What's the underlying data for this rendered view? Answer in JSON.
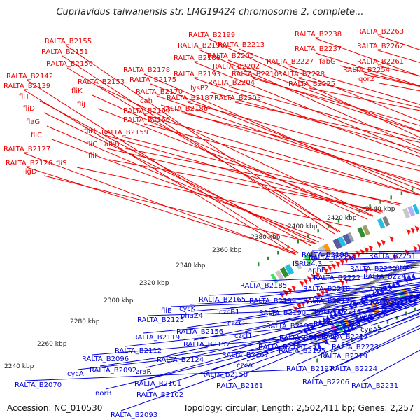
{
  "title": "Cupriavidus taiwanensis str. LMG19424 chromosome 2, complete...",
  "accession": "Accession: NC_010530",
  "topology": "Topology: circular; Length: 2,502,411 bp; Genes: 2,257",
  "colors": {
    "top_labels": "#ee0000",
    "bottom_labels": "#0000dd",
    "backbone": "#808080",
    "forward_arrow": "#ff1010",
    "reverse_arrow": "#1a1aff",
    "tick_marks": "#2a8a2a"
  },
  "kbp_labels": [
    "2240 kbp",
    "2260 kbp",
    "2280 kbp",
    "2300 kbp",
    "2320 kbp",
    "2340 kbp",
    "2360 kbp",
    "2380 kbp",
    "2400 kbp",
    "2420 kbp",
    "2440 kbp"
  ],
  "top_labels": [
    "RALTA_B2155",
    "RALTA_B2151",
    "RALTA_B2150",
    "RALTA_B2142",
    "RALTA_B2139",
    "fliT",
    "RALTA_B2153",
    "fliK",
    "fliJ",
    "fliD",
    "flaG",
    "fliH",
    "fliC",
    "fliG",
    "alkB",
    "RALTA_B2127",
    "fliF",
    "RALTA_B2126",
    "fliS",
    "ligD",
    "RALTA_B2178",
    "RALTA_B2175",
    "RALTA_B2170",
    "cah",
    "RALTA_B2164",
    "RALTA_B2160",
    "RALTA_B2159",
    "RALTA_B2199",
    "RALTA_B2196",
    "RALTA_B2213",
    "RALTA_B2188",
    "RALTA_B2205",
    "RALTA_B2202",
    "RALTA_B2193",
    "RALTA_B2210",
    "lysP2",
    "RALTA_B2204",
    "RALTA_B2187",
    "RALTA_B2203",
    "RALTA_B2186",
    "RALTA_B2238",
    "RALTA_B2237",
    "RALTA_B2227",
    "fabG",
    "RALTA_B2228",
    "RALTA_B2225",
    "RALTA_B2263",
    "RALTA_B2262",
    "RALTA_B2261",
    "RALTA_B2254",
    "qor2"
  ],
  "bottom_labels": [
    "RALTA_B2198",
    "ISRta4.3",
    "RALTA_B2185",
    "RALTA_B2226",
    "aphE",
    "RALTA_B2222",
    "RALTA_B2232",
    "RALTA_B2218",
    "cyoB2",
    "RALTA_B2251",
    "argG",
    "RALTA_B2247",
    "RALTA_B2253",
    "RALTA_B2212",
    "fliE",
    "RALTA_B2125",
    "cysK",
    "RALTA_B2165",
    "czcB1",
    "phaZ4",
    "RALTA_B2189",
    "RALTA_B2214",
    "cyoD2",
    "RALTA_B2190",
    "cyoC2",
    "czcC1",
    "RALTA_B2156",
    "RALTA_B2191",
    "RALTA_B2215",
    "cyoA2",
    "czcI1",
    "RALTA_B2119",
    "RALTA_B2157",
    "RALTA_B2194",
    "RALTA_B2217",
    "RALTA_B2180",
    "RALTA_B2223",
    "RALTA_B2112",
    "RALTA_B2096",
    "RALTA_B2124",
    "RALTA_B2167",
    "RALTA_B2195",
    "RALTA_B2219",
    "czcA1",
    "RALTA_B2092",
    "zraR",
    "RALTA_B2197",
    "RALTA_B2224",
    "RALTA_B2158",
    "cycA",
    "RALTA_B2070",
    "RALTA_B2101",
    "RALTA_B2161",
    "RALTA_B2206",
    "RALTA_B2231",
    "norB",
    "RALTA_B2102",
    "RALTA_B2093"
  ]
}
